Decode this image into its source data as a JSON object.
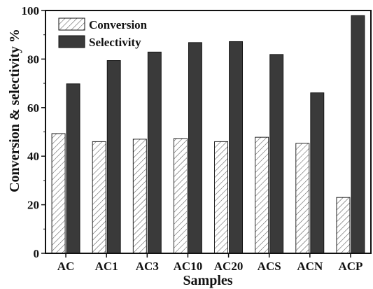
{
  "chart_data": {
    "type": "bar",
    "title": "",
    "xlabel": "Samples",
    "ylabel": "Conversion & selectivity %",
    "categories": [
      "AC",
      "AC1",
      "AC3",
      "AC10",
      "AC20",
      "ACS",
      "ACN",
      "ACP"
    ],
    "series": [
      {
        "name": "Conversion",
        "values": [
          49.3,
          46.0,
          47.0,
          47.3,
          46.0,
          47.8,
          45.3,
          23.0
        ],
        "pattern": "diagonal-hatch",
        "color": "#ffffff"
      },
      {
        "name": "Selectivity",
        "values": [
          69.8,
          79.4,
          82.9,
          86.8,
          87.2,
          81.9,
          66.1,
          97.9
        ],
        "pattern": "solid",
        "color": "#3a3a3a"
      }
    ],
    "ylim": [
      0,
      100
    ],
    "yticks": [
      0,
      20,
      40,
      60,
      80,
      100
    ],
    "legend_position": "top-left",
    "grid": false
  }
}
